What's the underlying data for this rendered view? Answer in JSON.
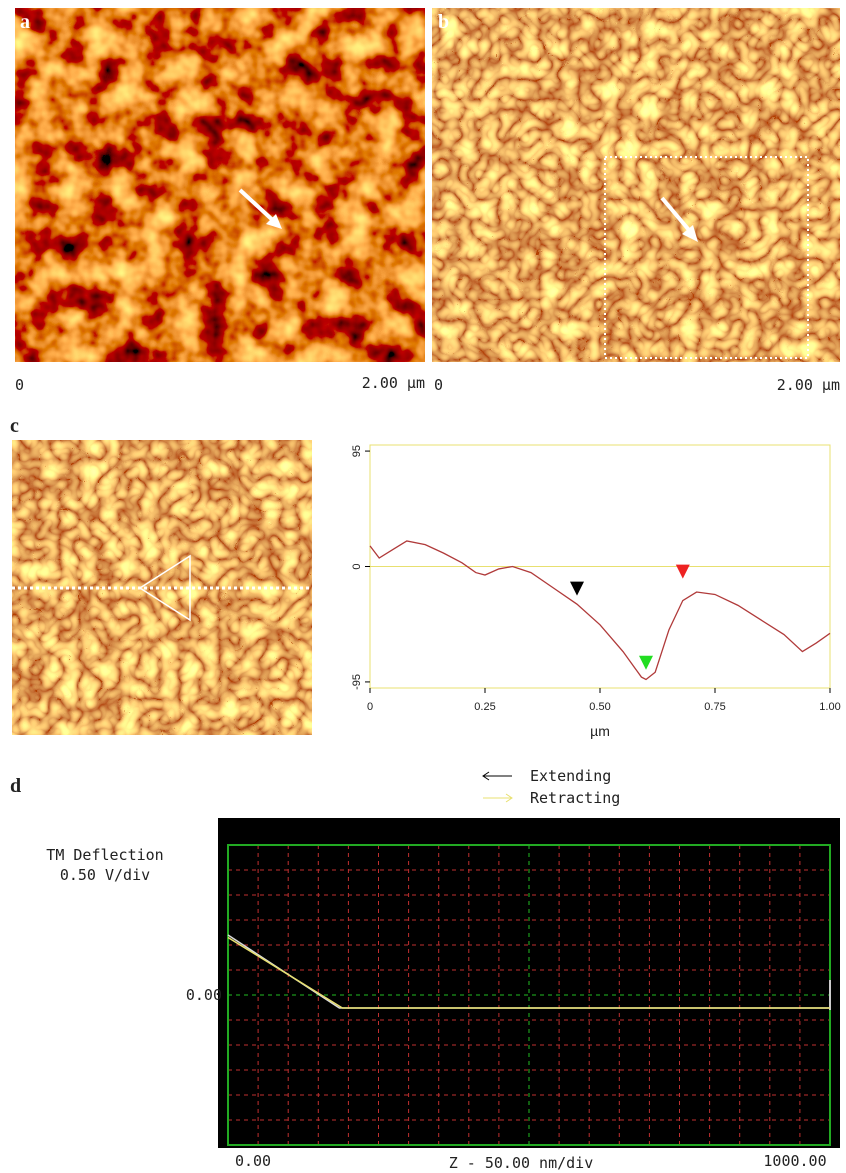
{
  "panels": {
    "a": {
      "label": "a",
      "scale_start": "0",
      "scale_end": "2.00 µm"
    },
    "b": {
      "label": "b",
      "scale_start": "0",
      "scale_end": "2.00 µm"
    },
    "c": {
      "label": "c"
    },
    "d": {
      "label": "d"
    }
  },
  "chart_data": [
    {
      "type": "line",
      "color": "#b03a3a",
      "x": [
        0,
        0.02,
        0.05,
        0.08,
        0.12,
        0.16,
        0.2,
        0.23,
        0.25,
        0.28,
        0.31,
        0.35,
        0.4,
        0.45,
        0.5,
        0.55,
        0.59,
        0.6,
        0.62,
        0.65,
        0.68,
        0.71,
        0.75,
        0.8,
        0.85,
        0.9,
        0.94,
        0.97,
        1.0
      ],
      "values": [
        17,
        7,
        14,
        21,
        18,
        11,
        3,
        -5,
        -7,
        -2,
        0,
        -5,
        -18,
        -31,
        -48,
        -70,
        -91,
        -93,
        -87,
        -52,
        -28,
        -21,
        -23,
        -32,
        -44,
        -56,
        -70,
        -63,
        -55
      ],
      "xlim": [
        0,
        1.0
      ],
      "ylim": [
        -100,
        100
      ],
      "xticks": [
        0,
        0.25,
        {
          "value": 0.5,
          "label": "0.50"
        },
        0.75,
        {
          "value": 1.0,
          "label": "1.00"
        }
      ],
      "yticks": [
        -95,
        0,
        95
      ],
      "xlabel": "µm",
      "markers": [
        {
          "x": 0.45,
          "y": -24,
          "color": "#000000"
        },
        {
          "x": 0.6,
          "y": -85,
          "color": "#22dd22"
        },
        {
          "x": 0.68,
          "y": -10,
          "color": "#ee2222"
        }
      ]
    },
    {
      "type": "line",
      "series": [
        {
          "name": "Extending",
          "color": "#d8d8d8",
          "x": [
            0,
            185,
            1000
          ],
          "values": [
            1.2,
            -0.26,
            -0.26
          ]
        },
        {
          "name": "Retracting",
          "color": "#e8e070",
          "x": [
            0,
            190,
            1000
          ],
          "values": [
            1.15,
            -0.26,
            -0.26
          ]
        }
      ],
      "xlim": [
        0,
        1000
      ],
      "ylim": [
        -3,
        3
      ],
      "xticks": [
        {
          "value": 0,
          "label": "0.00"
        },
        {
          "value": 1000,
          "label": "1000.00"
        }
      ],
      "yticks": [
        {
          "value": 0,
          "label": "0.00"
        }
      ],
      "xlabel": "Z - 50.00 nm/div",
      "ylabel": [
        "TM Deflection",
        "0.50 V/div"
      ],
      "xgrid_step": 50,
      "ygrid_step": 0.5
    }
  ]
}
